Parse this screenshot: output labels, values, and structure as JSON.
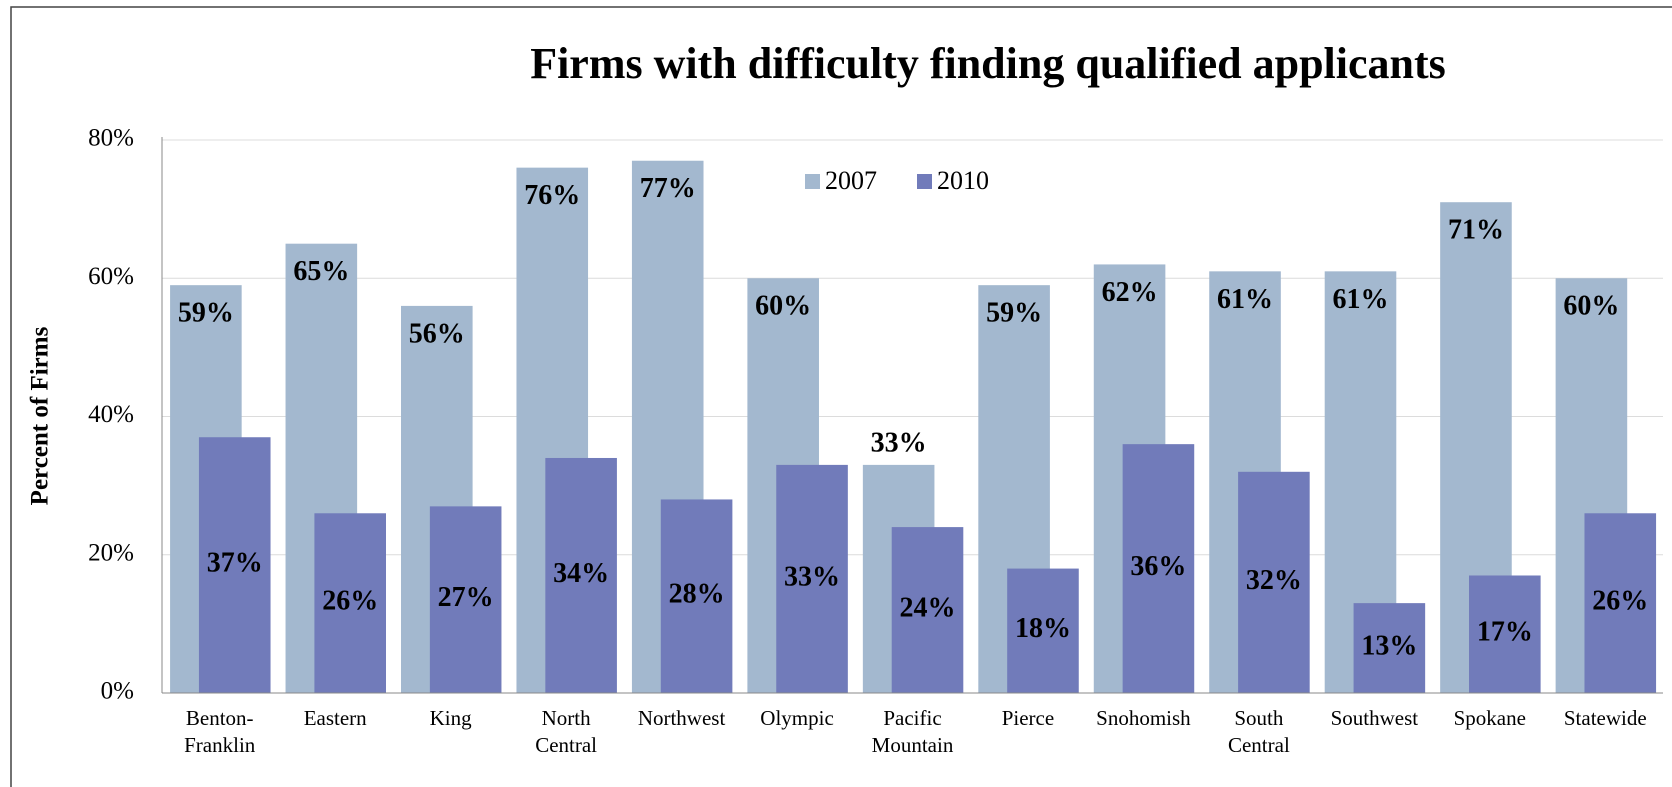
{
  "chart_data": {
    "type": "bar",
    "title": "Firms with difficulty finding qualified applicants",
    "y_label": "Percent of Firms",
    "categories": [
      "Benton-Franklin",
      "Eastern",
      "King",
      "North Central",
      "Northwest",
      "Olympic",
      "Pacific Mountain",
      "Pierce",
      "Snohomish",
      "South Central",
      "Southwest",
      "Spokane",
      "Statewide"
    ],
    "series": [
      {
        "name": "2007",
        "color": "#a3b8cf",
        "values": [
          59,
          65,
          56,
          76,
          77,
          60,
          33,
          59,
          62,
          61,
          61,
          71,
          60
        ],
        "value_labels": [
          "59%",
          "65%",
          "56%",
          "76%",
          "77%",
          "60%",
          "33%",
          "59%",
          "62%",
          "61%",
          "61%",
          "71%",
          "60%"
        ]
      },
      {
        "name": "2010",
        "color": "#717bba",
        "values": [
          37,
          26,
          27,
          34,
          28,
          33,
          24,
          18,
          36,
          32,
          13,
          17,
          26
        ],
        "value_labels": [
          "37%",
          "26%",
          "27%",
          "34%",
          "28%",
          "33%",
          "24%",
          "18%",
          "36%",
          "32%",
          "13%",
          "17%",
          "26%"
        ]
      }
    ],
    "ylim": [
      0,
      80
    ],
    "yticks": [
      {
        "value": 0,
        "label": "0%"
      },
      {
        "value": 20,
        "label": "20%"
      },
      {
        "value": 40,
        "label": "40%"
      },
      {
        "value": 60,
        "label": "60%"
      },
      {
        "value": 80,
        "label": "80%"
      }
    ],
    "grid": true,
    "legend": "top"
  }
}
